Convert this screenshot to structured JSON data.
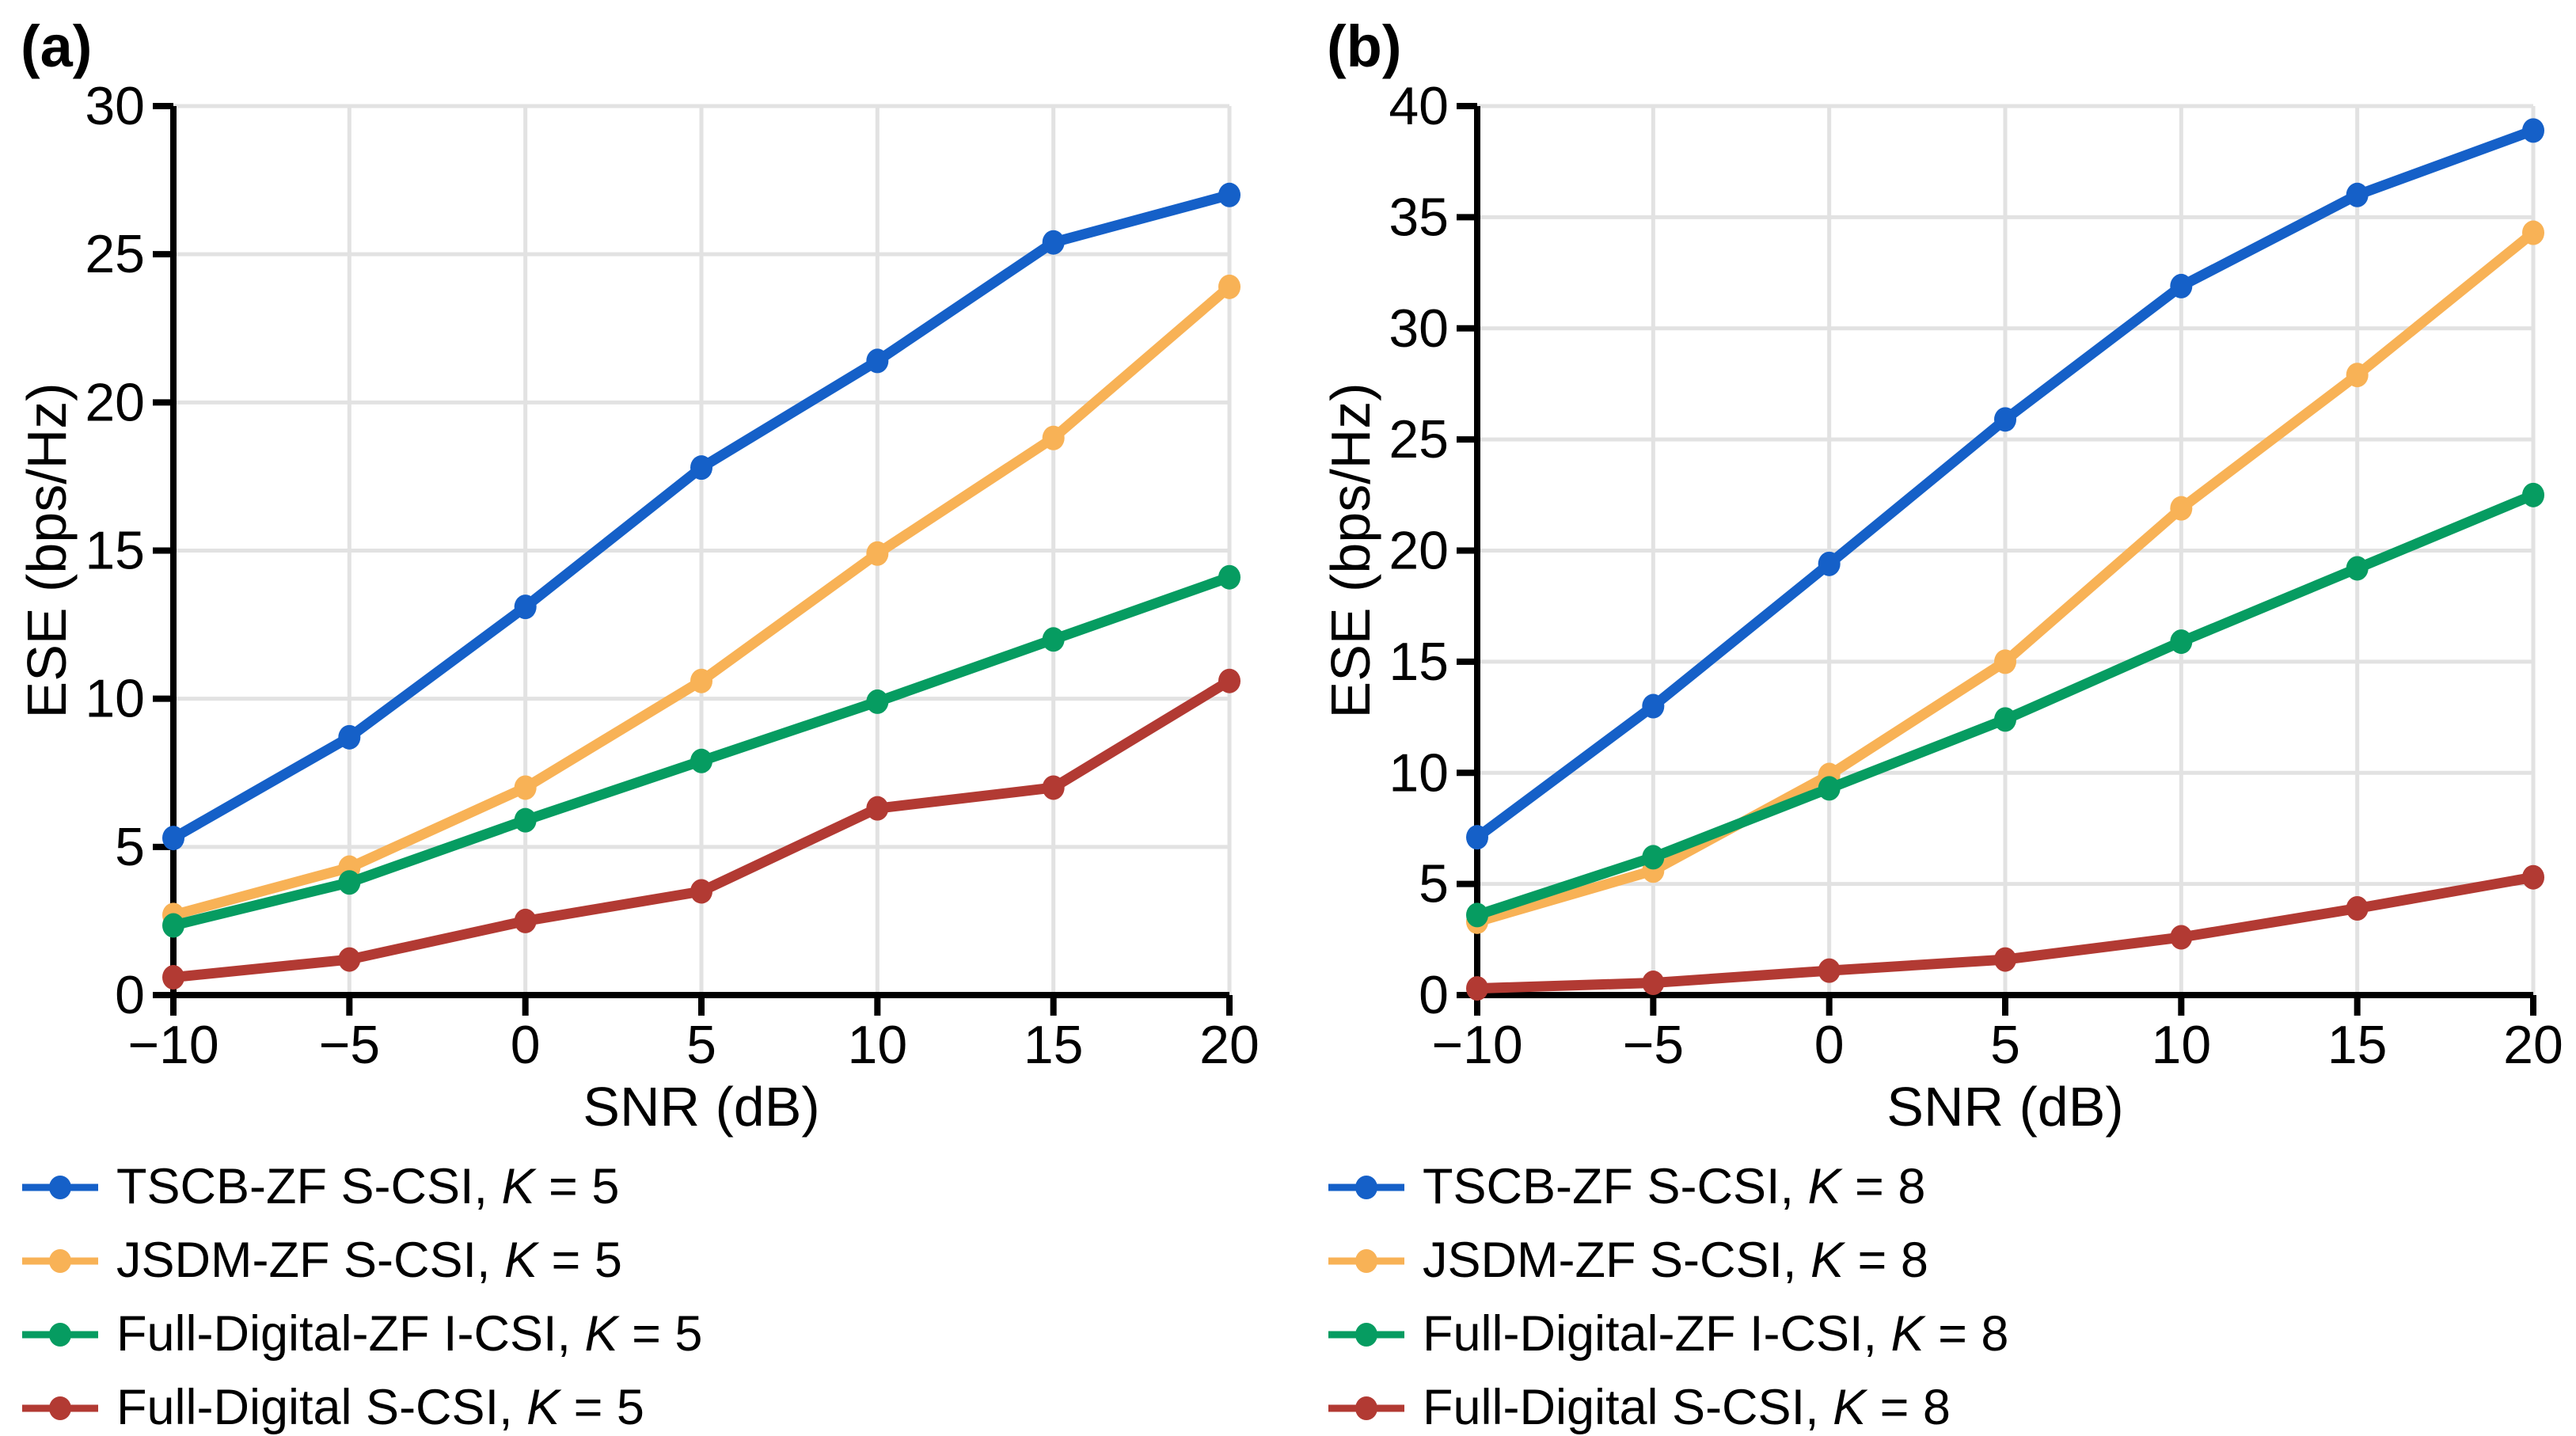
{
  "figure": {
    "background": "#ffffff",
    "grid_color": "#e2e2e2",
    "axis_color": "#000000"
  },
  "chart_data": [
    {
      "type": "line",
      "panel_tag": "(a)",
      "xlabel": "SNR (dB)",
      "ylabel": "ESE (bps/Hz)",
      "x": [
        -10,
        -5,
        0,
        5,
        10,
        15,
        20
      ],
      "x_tick_labels": [
        "−10",
        "−5",
        "0",
        "5",
        "10",
        "15",
        "20"
      ],
      "y_ticks": [
        0,
        5,
        10,
        15,
        20,
        25,
        30
      ],
      "y_tick_labels": [
        "0",
        "5",
        "10",
        "15",
        "20",
        "25",
        "30"
      ],
      "xlim": [
        -10,
        20
      ],
      "ylim": [
        0,
        30
      ],
      "grid": true,
      "legend_position": "below-left",
      "series": [
        {
          "name": "TSCB-ZF S-CSI, K = 5",
          "label_main": "TSCB-ZF S-CSI, ",
          "label_k": "K",
          "label_eq": " = 5",
          "color": "#1560C8",
          "values": [
            5.3,
            8.7,
            13.1,
            17.8,
            21.4,
            25.4,
            27.0
          ]
        },
        {
          "name": "JSDM-ZF S-CSI, K = 5",
          "label_main": "JSDM-ZF S-CSI, ",
          "label_k": "K",
          "label_eq": " = 5",
          "color": "#F8B256",
          "values": [
            2.7,
            4.3,
            7.0,
            10.6,
            14.9,
            18.8,
            23.9
          ]
        },
        {
          "name": "Full-Digital-ZF I-CSI, K = 5",
          "label_main": "Full-Digital-ZF I-CSI, ",
          "label_k": "K",
          "label_eq": " = 5",
          "color": "#069C61",
          "values": [
            2.35,
            3.8,
            5.9,
            7.9,
            9.9,
            12.0,
            14.1
          ]
        },
        {
          "name": "Full-Digital S-CSI, K = 5",
          "label_main": "Full-Digital S-CSI, ",
          "label_k": "K",
          "label_eq": " = 5",
          "color": "#B23A33",
          "values": [
            0.6,
            1.2,
            2.5,
            3.5,
            6.3,
            7.0,
            10.6
          ]
        }
      ]
    },
    {
      "type": "line",
      "panel_tag": "(b)",
      "xlabel": "SNR (dB)",
      "ylabel": "ESE (bps/Hz)",
      "x": [
        -10,
        -5,
        0,
        5,
        10,
        15,
        20
      ],
      "x_tick_labels": [
        "−10",
        "−5",
        "0",
        "5",
        "10",
        "15",
        "20"
      ],
      "y_ticks": [
        0,
        5,
        10,
        15,
        20,
        25,
        30,
        35,
        40
      ],
      "y_tick_labels": [
        "0",
        "5",
        "10",
        "15",
        "20",
        "25",
        "30",
        "35",
        "40"
      ],
      "xlim": [
        -10,
        20
      ],
      "ylim": [
        0,
        40
      ],
      "grid": true,
      "legend_position": "below-left",
      "series": [
        {
          "name": "TSCB-ZF S-CSI, K = 8",
          "label_main": "TSCB-ZF S-CSI, ",
          "label_k": "K",
          "label_eq": " = 8",
          "color": "#1560C8",
          "values": [
            7.1,
            13.0,
            19.4,
            25.9,
            31.9,
            36.0,
            38.9
          ]
        },
        {
          "name": "JSDM-ZF S-CSI, K = 8",
          "label_main": "JSDM-ZF S-CSI, ",
          "label_k": "K",
          "label_eq": " = 8",
          "color": "#F8B256",
          "values": [
            3.3,
            5.6,
            9.9,
            15.0,
            21.9,
            27.9,
            34.3
          ]
        },
        {
          "name": "Full-Digital-ZF I-CSI, K = 8",
          "label_main": "Full-Digital-ZF I-CSI, ",
          "label_k": "K",
          "label_eq": " = 8",
          "color": "#069C61",
          "values": [
            3.6,
            6.2,
            9.3,
            12.4,
            15.9,
            19.2,
            22.5
          ]
        },
        {
          "name": "Full-Digital S-CSI, K = 8",
          "label_main": "Full-Digital S-CSI, ",
          "label_k": "K",
          "label_eq": " = 8",
          "color": "#B23A33",
          "values": [
            0.3,
            0.55,
            1.1,
            1.6,
            2.6,
            3.9,
            5.3
          ]
        }
      ]
    }
  ]
}
